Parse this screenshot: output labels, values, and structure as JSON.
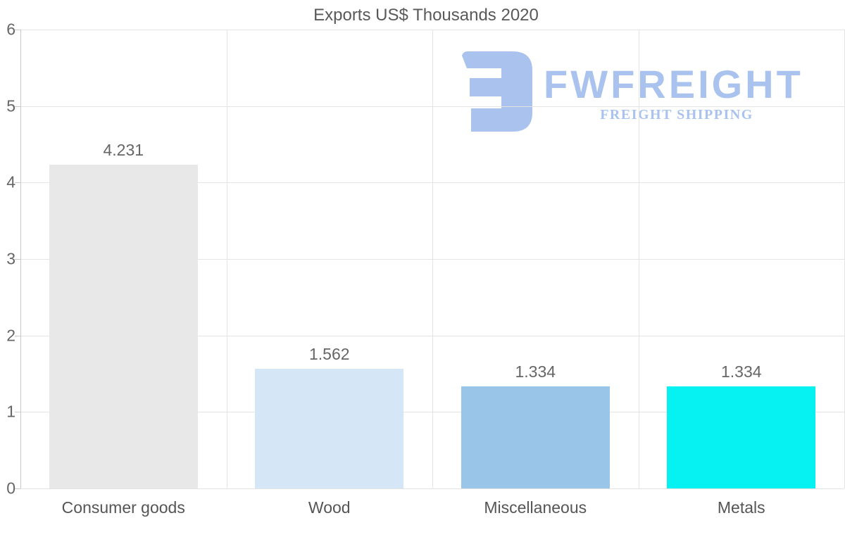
{
  "chart_data": {
    "type": "bar",
    "title": "Exports US$ Thousands 2020",
    "categories": [
      "Consumer goods",
      "Wood",
      "Miscellaneous",
      "Metals"
    ],
    "values": [
      4.231,
      1.562,
      1.334,
      1.334
    ],
    "value_labels": [
      "4.231",
      "1.562",
      "1.334",
      "1.334"
    ],
    "bar_colors": [
      "#e8e8e8",
      "#d5e6f6",
      "#99c5e8",
      "#06f1f1"
    ],
    "xlabel": "",
    "ylabel": "",
    "ylim": [
      0,
      6
    ],
    "yticks": [
      "0",
      "1",
      "2",
      "3",
      "4",
      "5",
      "6"
    ],
    "grid": true,
    "legend_position": "none"
  },
  "watermark": {
    "brand": "FWFREIGHT",
    "tagline": "FREIGHT SHIPPING",
    "color": "#a9c3ee"
  },
  "colors": {
    "title": "#595959",
    "tick_label": "#666666",
    "value_label": "#666666",
    "category_label": "#555555",
    "gridline": "#e4e4e4",
    "axis": "#c9c9c9"
  }
}
